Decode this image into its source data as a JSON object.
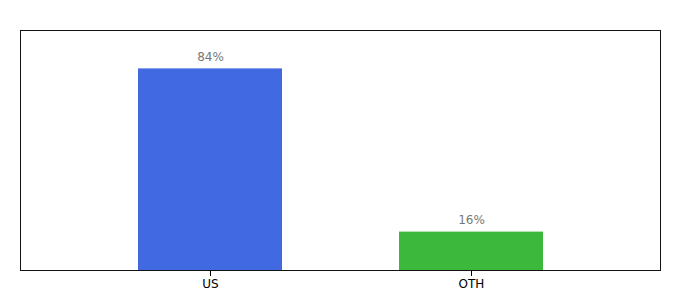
{
  "chart_data": {
    "type": "bar",
    "categories": [
      "US",
      "OTH"
    ],
    "values": [
      84,
      16
    ],
    "value_labels": [
      "84%",
      "16%"
    ],
    "colors": [
      "#4169e1",
      "#3cb83c"
    ],
    "ylim": [
      0,
      100
    ],
    "data_labels": true,
    "tick_labels": "x",
    "grid": false
  }
}
